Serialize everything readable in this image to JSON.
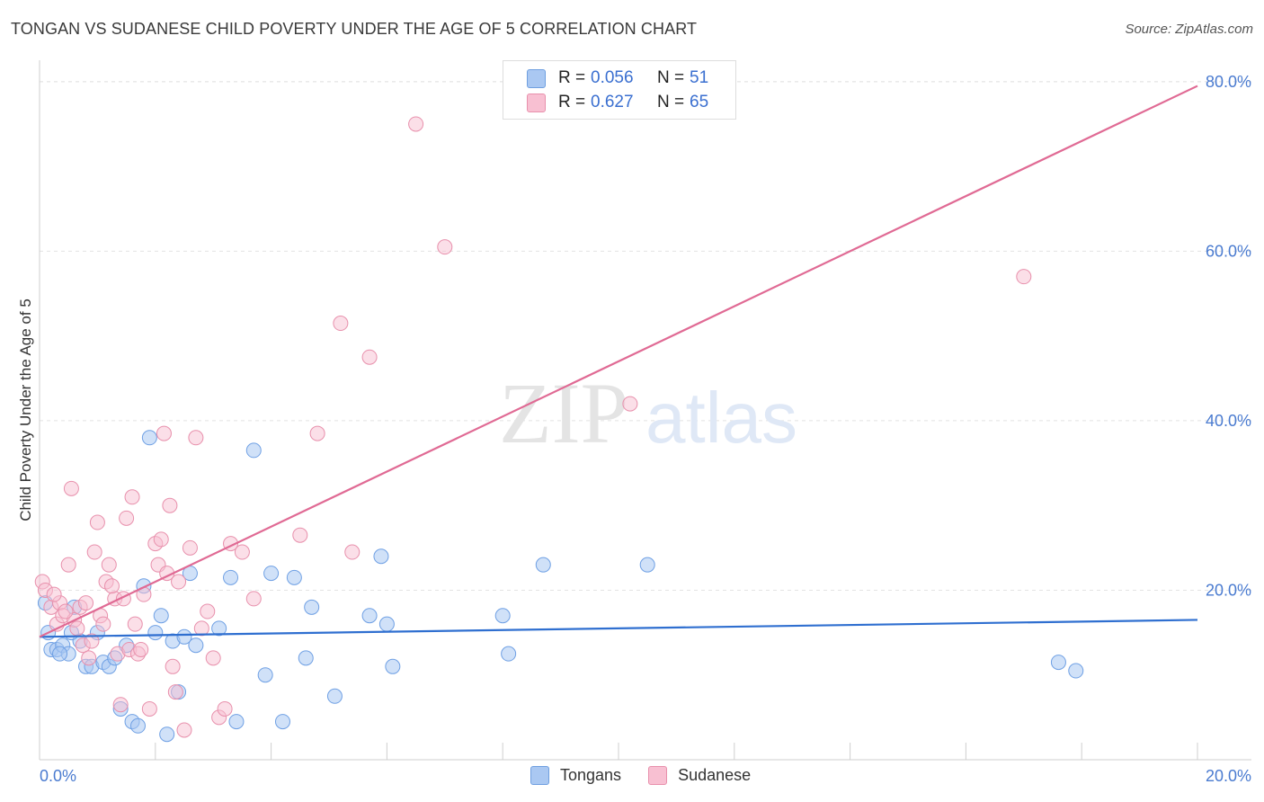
{
  "title": "TONGAN VS SUDANESE CHILD POVERTY UNDER THE AGE OF 5 CORRELATION CHART",
  "source": "Source: ZipAtlas.com",
  "watermark": {
    "zip": "ZIP",
    "atlas": "atlas"
  },
  "legend": {
    "rows": [
      {
        "r_label": "R =",
        "r_value": "0.056",
        "n_label": "N =",
        "n_value": "51",
        "color": "#aac8f2",
        "border": "#6f9fe0"
      },
      {
        "r_label": "R =",
        "r_value": "0.627",
        "n_label": "N =",
        "n_value": "65",
        "color": "#f8c0d2",
        "border": "#e890ac"
      }
    ]
  },
  "bottom_legend": [
    {
      "label": "Tongans",
      "color": "#aac8f2",
      "border": "#6f9fe0"
    },
    {
      "label": "Sudanese",
      "color": "#f8c0d2",
      "border": "#e890ac"
    }
  ],
  "chart_data": {
    "type": "scatter",
    "ylabel": "Child Poverty Under the Age of 5",
    "xlabel": "",
    "xlim": [
      0,
      20
    ],
    "ylim": [
      0,
      82
    ],
    "x_tick_labels": [
      "0.0%",
      "20.0%"
    ],
    "y_ticks": [
      20,
      40,
      60,
      80
    ],
    "y_tick_labels": [
      "20.0%",
      "40.0%",
      "60.0%",
      "80.0%"
    ],
    "grid": true,
    "series": [
      {
        "name": "Tongans",
        "color": "#6fa0e4",
        "fill": "rgba(170,200,242,0.55)",
        "trend": {
          "x": [
            0,
            20
          ],
          "y": [
            14.5,
            16.5
          ],
          "color": "#2f6fd0"
        },
        "points": [
          [
            0.1,
            18.5
          ],
          [
            0.2,
            13
          ],
          [
            0.3,
            13
          ],
          [
            0.4,
            13.5
          ],
          [
            0.5,
            12.5
          ],
          [
            0.6,
            18
          ],
          [
            0.7,
            14
          ],
          [
            0.8,
            11
          ],
          [
            0.9,
            11
          ],
          [
            1.0,
            15
          ],
          [
            1.1,
            11.5
          ],
          [
            1.2,
            11
          ],
          [
            1.3,
            12
          ],
          [
            1.4,
            6
          ],
          [
            1.5,
            13.5
          ],
          [
            1.6,
            4.5
          ],
          [
            1.7,
            4
          ],
          [
            1.8,
            20.5
          ],
          [
            1.9,
            38
          ],
          [
            2.0,
            15
          ],
          [
            2.1,
            17
          ],
          [
            2.2,
            3
          ],
          [
            2.3,
            14
          ],
          [
            2.4,
            8
          ],
          [
            2.5,
            14.5
          ],
          [
            2.6,
            22
          ],
          [
            2.7,
            13.5
          ],
          [
            3.1,
            15.5
          ],
          [
            3.3,
            21.5
          ],
          [
            3.4,
            4.5
          ],
          [
            3.7,
            36.5
          ],
          [
            3.9,
            10
          ],
          [
            4.0,
            22
          ],
          [
            4.2,
            4.5
          ],
          [
            4.4,
            21.5
          ],
          [
            4.6,
            12
          ],
          [
            4.7,
            18
          ],
          [
            5.1,
            7.5
          ],
          [
            5.7,
            17
          ],
          [
            5.9,
            24
          ],
          [
            6.0,
            16
          ],
          [
            6.1,
            11
          ],
          [
            8.0,
            17
          ],
          [
            8.1,
            12.5
          ],
          [
            8.7,
            23
          ],
          [
            10.5,
            23
          ],
          [
            17.6,
            11.5
          ],
          [
            17.9,
            10.5
          ],
          [
            0.15,
            15
          ],
          [
            0.35,
            12.5
          ],
          [
            0.55,
            15
          ]
        ]
      },
      {
        "name": "Sudanese",
        "color": "#e890ac",
        "fill": "rgba(248,192,210,0.5)",
        "trend": {
          "x": [
            0,
            20
          ],
          "y": [
            14.5,
            79.5
          ],
          "color": "#e06a94"
        },
        "points": [
          [
            0.05,
            21
          ],
          [
            0.1,
            20
          ],
          [
            0.2,
            18
          ],
          [
            0.3,
            16
          ],
          [
            0.35,
            18.5
          ],
          [
            0.4,
            17
          ],
          [
            0.5,
            23
          ],
          [
            0.55,
            32
          ],
          [
            0.6,
            16.5
          ],
          [
            0.7,
            18
          ],
          [
            0.75,
            13.5
          ],
          [
            0.8,
            18.5
          ],
          [
            0.9,
            14
          ],
          [
            0.95,
            24.5
          ],
          [
            1.0,
            28
          ],
          [
            1.05,
            17
          ],
          [
            1.1,
            16
          ],
          [
            1.15,
            21
          ],
          [
            1.2,
            23
          ],
          [
            1.3,
            19
          ],
          [
            1.35,
            12.5
          ],
          [
            1.4,
            6.5
          ],
          [
            1.5,
            28.5
          ],
          [
            1.55,
            13
          ],
          [
            1.6,
            31
          ],
          [
            1.65,
            16
          ],
          [
            1.7,
            12.5
          ],
          [
            1.8,
            19.5
          ],
          [
            1.9,
            6
          ],
          [
            2.0,
            25.5
          ],
          [
            2.05,
            23
          ],
          [
            2.1,
            26
          ],
          [
            2.15,
            38.5
          ],
          [
            2.2,
            22
          ],
          [
            2.3,
            11
          ],
          [
            2.35,
            8
          ],
          [
            2.4,
            21
          ],
          [
            2.5,
            3.5
          ],
          [
            2.6,
            25
          ],
          [
            2.7,
            38
          ],
          [
            2.8,
            15.5
          ],
          [
            2.9,
            17.5
          ],
          [
            3.0,
            12
          ],
          [
            3.1,
            5
          ],
          [
            3.2,
            6
          ],
          [
            3.3,
            25.5
          ],
          [
            3.5,
            24.5
          ],
          [
            3.7,
            19
          ],
          [
            4.5,
            26.5
          ],
          [
            4.8,
            38.5
          ],
          [
            5.2,
            51.5
          ],
          [
            5.4,
            24.5
          ],
          [
            5.7,
            47.5
          ],
          [
            6.5,
            75
          ],
          [
            7.0,
            60.5
          ],
          [
            10.2,
            42
          ],
          [
            17.0,
            57
          ],
          [
            0.25,
            19.5
          ],
          [
            0.45,
            17.5
          ],
          [
            0.65,
            15.5
          ],
          [
            0.85,
            12
          ],
          [
            1.25,
            20.5
          ],
          [
            1.45,
            19
          ],
          [
            1.75,
            13
          ],
          [
            2.25,
            30
          ]
        ]
      }
    ]
  }
}
